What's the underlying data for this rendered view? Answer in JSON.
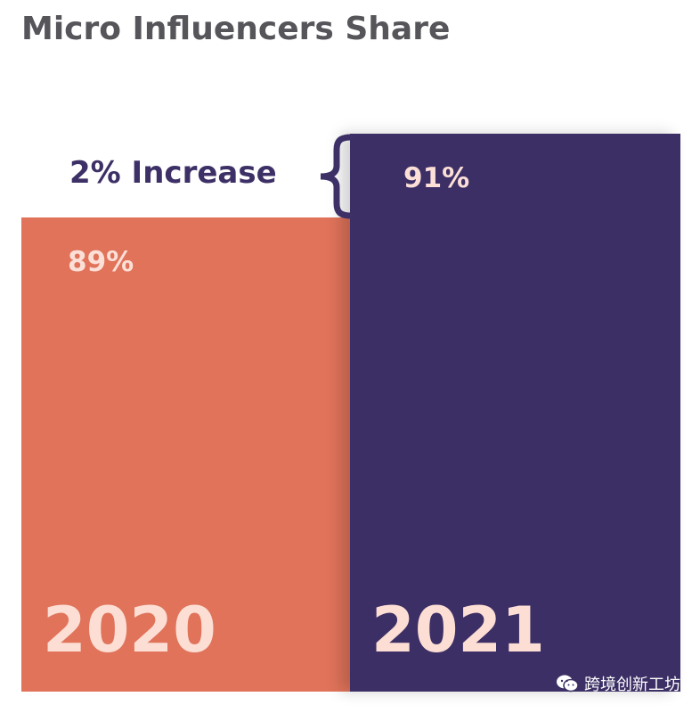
{
  "title": "Micro Influencers Share",
  "annotation": "2% Increase",
  "watermark": "跨境创新工坊",
  "colors": {
    "bar_2020": "#e0735a",
    "bar_2021": "#3c2f65",
    "label": "#fce0d8",
    "title": "#55555a",
    "annotation": "#3d3066"
  },
  "chart_data": {
    "type": "bar",
    "title": "Micro Influencers Share",
    "categories": [
      "2020",
      "2021"
    ],
    "values": [
      89,
      91
    ],
    "value_labels": [
      "89%",
      "91%"
    ],
    "annotations": [
      "2% Increase"
    ],
    "grid": false,
    "legend": "none"
  }
}
